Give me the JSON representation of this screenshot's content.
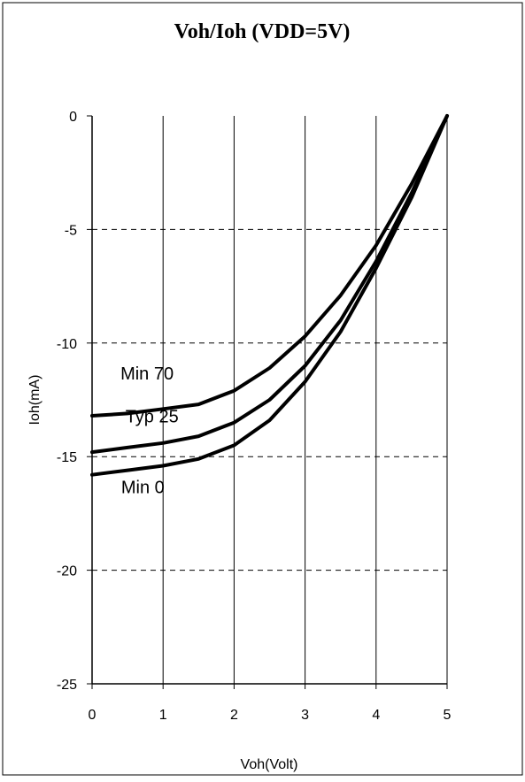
{
  "chart_data": {
    "type": "line",
    "title": "Voh/Ioh (VDD=5V)",
    "xlabel": "Voh(Volt)",
    "ylabel": "Ioh(mA)",
    "xlim": [
      0,
      5
    ],
    "ylim": [
      -25,
      0
    ],
    "xticks": [
      "0",
      "1",
      "2",
      "3",
      "4",
      "5"
    ],
    "yticks": [
      "0",
      "-5",
      "-10",
      "-15",
      "-20",
      "-25"
    ],
    "grid": {
      "x": "solid",
      "y": "dashed"
    },
    "legend": "none",
    "series": [
      {
        "name": "Min 70",
        "x": [
          0,
          0.5,
          1,
          1.5,
          2,
          2.5,
          3,
          3.5,
          4,
          4.5,
          5
        ],
        "y": [
          -13.2,
          -13.1,
          -12.9,
          -12.7,
          -12.1,
          -11.1,
          -9.7,
          -7.9,
          -5.7,
          -3.0,
          0
        ]
      },
      {
        "name": "Typ 25",
        "x": [
          0,
          0.5,
          1,
          1.5,
          2,
          2.5,
          3,
          3.5,
          4,
          4.5,
          5
        ],
        "y": [
          -14.8,
          -14.6,
          -14.4,
          -14.1,
          -13.5,
          -12.5,
          -11.0,
          -9.0,
          -6.4,
          -3.4,
          0
        ]
      },
      {
        "name": "Min 0",
        "x": [
          0,
          0.5,
          1,
          1.5,
          2,
          2.5,
          3,
          3.5,
          4,
          4.5,
          5
        ],
        "y": [
          -15.8,
          -15.6,
          -15.4,
          -15.1,
          -14.5,
          -13.4,
          -11.7,
          -9.5,
          -6.7,
          -3.6,
          0
        ]
      }
    ]
  }
}
